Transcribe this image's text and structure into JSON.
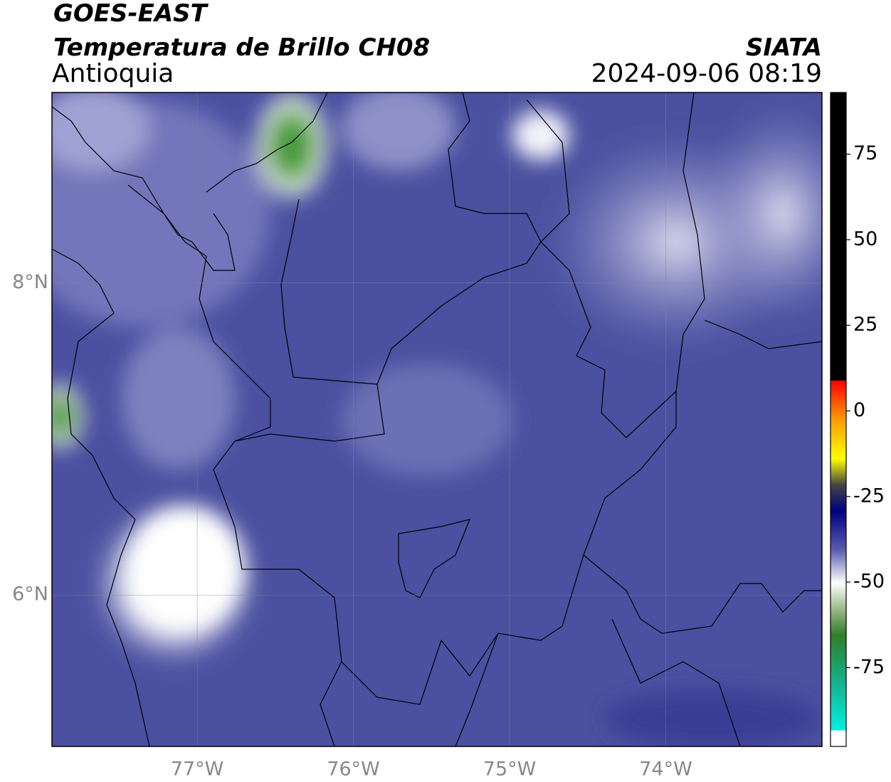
{
  "header": {
    "satellite": "GOES-EAST",
    "product": "Temperatura de Brillo CH08",
    "region": "Antioquia",
    "source": "SIATA",
    "datetime": "2024-09-06 08:19"
  },
  "chart_data": {
    "type": "map",
    "xlim": [
      -77.93,
      -73.0
    ],
    "ylim": [
      5.03,
      9.22
    ],
    "xticks": [
      {
        "value": -77,
        "label": "77°W"
      },
      {
        "value": -76,
        "label": "76°W"
      },
      {
        "value": -75,
        "label": "75°W"
      },
      {
        "value": -74,
        "label": "74°W"
      }
    ],
    "yticks": [
      {
        "value": 6,
        "label": "6°N"
      },
      {
        "value": 8,
        "label": "8°N"
      }
    ],
    "grid": true,
    "colorbar": {
      "lim": [
        -98,
        93
      ],
      "ticks": [
        -75,
        -50,
        -25,
        0,
        25,
        50,
        75
      ]
    }
  }
}
